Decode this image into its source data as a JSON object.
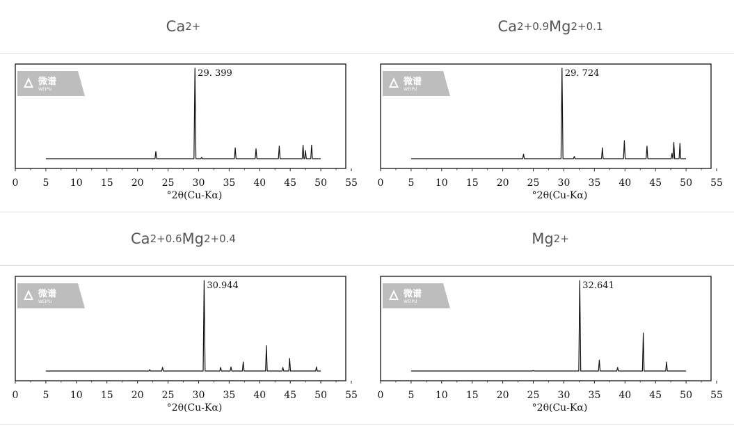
{
  "headers": [
    {
      "parts": [
        {
          "t": "Ca"
        },
        {
          "t": "2+",
          "s": "sup"
        }
      ]
    },
    {
      "parts": [
        {
          "t": "Ca"
        },
        {
          "t": "2+",
          "s": "sup"
        },
        {
          "t": "0.9",
          "s": "sub"
        },
        {
          "t": "Mg"
        },
        {
          "t": "2+",
          "s": "sup"
        },
        {
          "t": "0.1",
          "s": "sub"
        }
      ]
    },
    {
      "parts": [
        {
          "t": "Ca"
        },
        {
          "t": "2+",
          "s": "sup"
        },
        {
          "t": "0.6",
          "s": "sub"
        },
        {
          "t": "Mg"
        },
        {
          "t": "2+",
          "s": "sup"
        },
        {
          "t": "0.4",
          "s": "sub"
        }
      ]
    },
    {
      "parts": [
        {
          "t": "Mg"
        },
        {
          "t": "2+",
          "s": "sup"
        }
      ]
    }
  ],
  "watermark": {
    "cn": "微谱",
    "en": "WEIPU",
    "color": "#bdbdbd"
  },
  "chart_data": [
    {
      "type": "line",
      "xlabel": "°2θ(Cu-Kα)",
      "xlim": [
        0,
        55
      ],
      "xticks": [
        0,
        5,
        10,
        15,
        20,
        25,
        30,
        35,
        40,
        45,
        50,
        55
      ],
      "peak_label": "29. 399",
      "peaks": [
        [
          23.0,
          0.08
        ],
        [
          29.4,
          1.0
        ],
        [
          30.5,
          0.015
        ],
        [
          36.0,
          0.12
        ],
        [
          39.4,
          0.11
        ],
        [
          43.2,
          0.14
        ],
        [
          47.1,
          0.15
        ],
        [
          47.5,
          0.09
        ],
        [
          48.5,
          0.15
        ]
      ]
    },
    {
      "type": "line",
      "xlabel": "°2θ(Cu-Kα)",
      "xlim": [
        0,
        55
      ],
      "xticks": [
        0,
        5,
        10,
        15,
        20,
        25,
        30,
        35,
        40,
        45,
        50,
        55
      ],
      "peak_label": "29. 724",
      "peaks": [
        [
          23.4,
          0.05
        ],
        [
          29.7,
          1.0
        ],
        [
          31.7,
          0.025
        ],
        [
          36.3,
          0.12
        ],
        [
          39.9,
          0.2
        ],
        [
          43.6,
          0.14
        ],
        [
          47.7,
          0.06
        ],
        [
          48.0,
          0.18
        ],
        [
          49.0,
          0.17
        ]
      ]
    },
    {
      "type": "line",
      "xlabel": "°2θ(Cu-Kα)",
      "xlim": [
        0,
        55
      ],
      "xticks": [
        0,
        5,
        10,
        15,
        20,
        25,
        30,
        35,
        40,
        45,
        50,
        55
      ],
      "peak_label": "30.944",
      "peaks": [
        [
          22.0,
          0.015
        ],
        [
          24.1,
          0.04
        ],
        [
          30.9,
          1.0
        ],
        [
          33.6,
          0.04
        ],
        [
          35.3,
          0.045
        ],
        [
          37.3,
          0.1
        ],
        [
          41.1,
          0.28
        ],
        [
          43.8,
          0.04
        ],
        [
          44.9,
          0.14
        ],
        [
          49.3,
          0.045
        ]
      ]
    },
    {
      "type": "line",
      "xlabel": "°2θ(Cu-Kα)",
      "xlim": [
        0,
        55
      ],
      "xticks": [
        0,
        5,
        10,
        15,
        20,
        25,
        30,
        35,
        40,
        45,
        50,
        55
      ],
      "peak_label": "32.641",
      "peaks": [
        [
          25.0,
          0.005
        ],
        [
          32.6,
          1.0
        ],
        [
          35.8,
          0.12
        ],
        [
          38.8,
          0.04
        ],
        [
          43.0,
          0.42
        ],
        [
          46.8,
          0.1
        ]
      ]
    }
  ]
}
